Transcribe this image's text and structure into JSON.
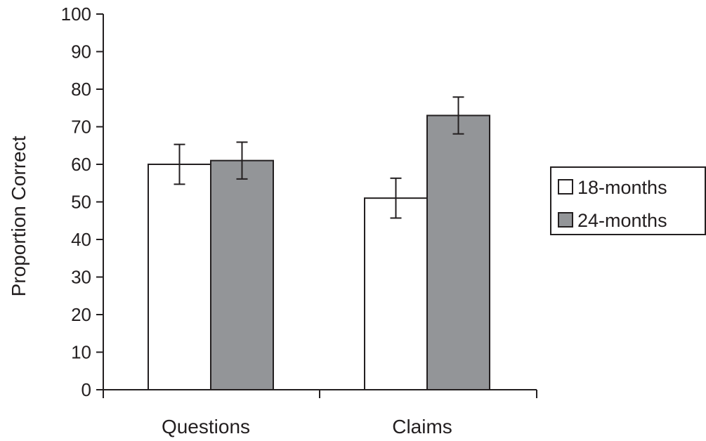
{
  "chart_data": {
    "type": "bar",
    "title": "",
    "xlabel": "",
    "ylabel": "Proportion Correct",
    "ylim": [
      0,
      100
    ],
    "yticks": [
      0,
      10,
      20,
      30,
      40,
      50,
      60,
      70,
      80,
      90,
      100
    ],
    "categories": [
      "Questions",
      "Claims"
    ],
    "series": [
      {
        "name": "18-months",
        "values": [
          60,
          51
        ],
        "errors": [
          5.3,
          5.3
        ],
        "color": "#ffffff"
      },
      {
        "name": "24-months",
        "values": [
          61,
          73
        ],
        "errors": [
          4.9,
          4.9
        ],
        "color": "#939598"
      }
    ],
    "grid": false,
    "legend_position": "right"
  }
}
